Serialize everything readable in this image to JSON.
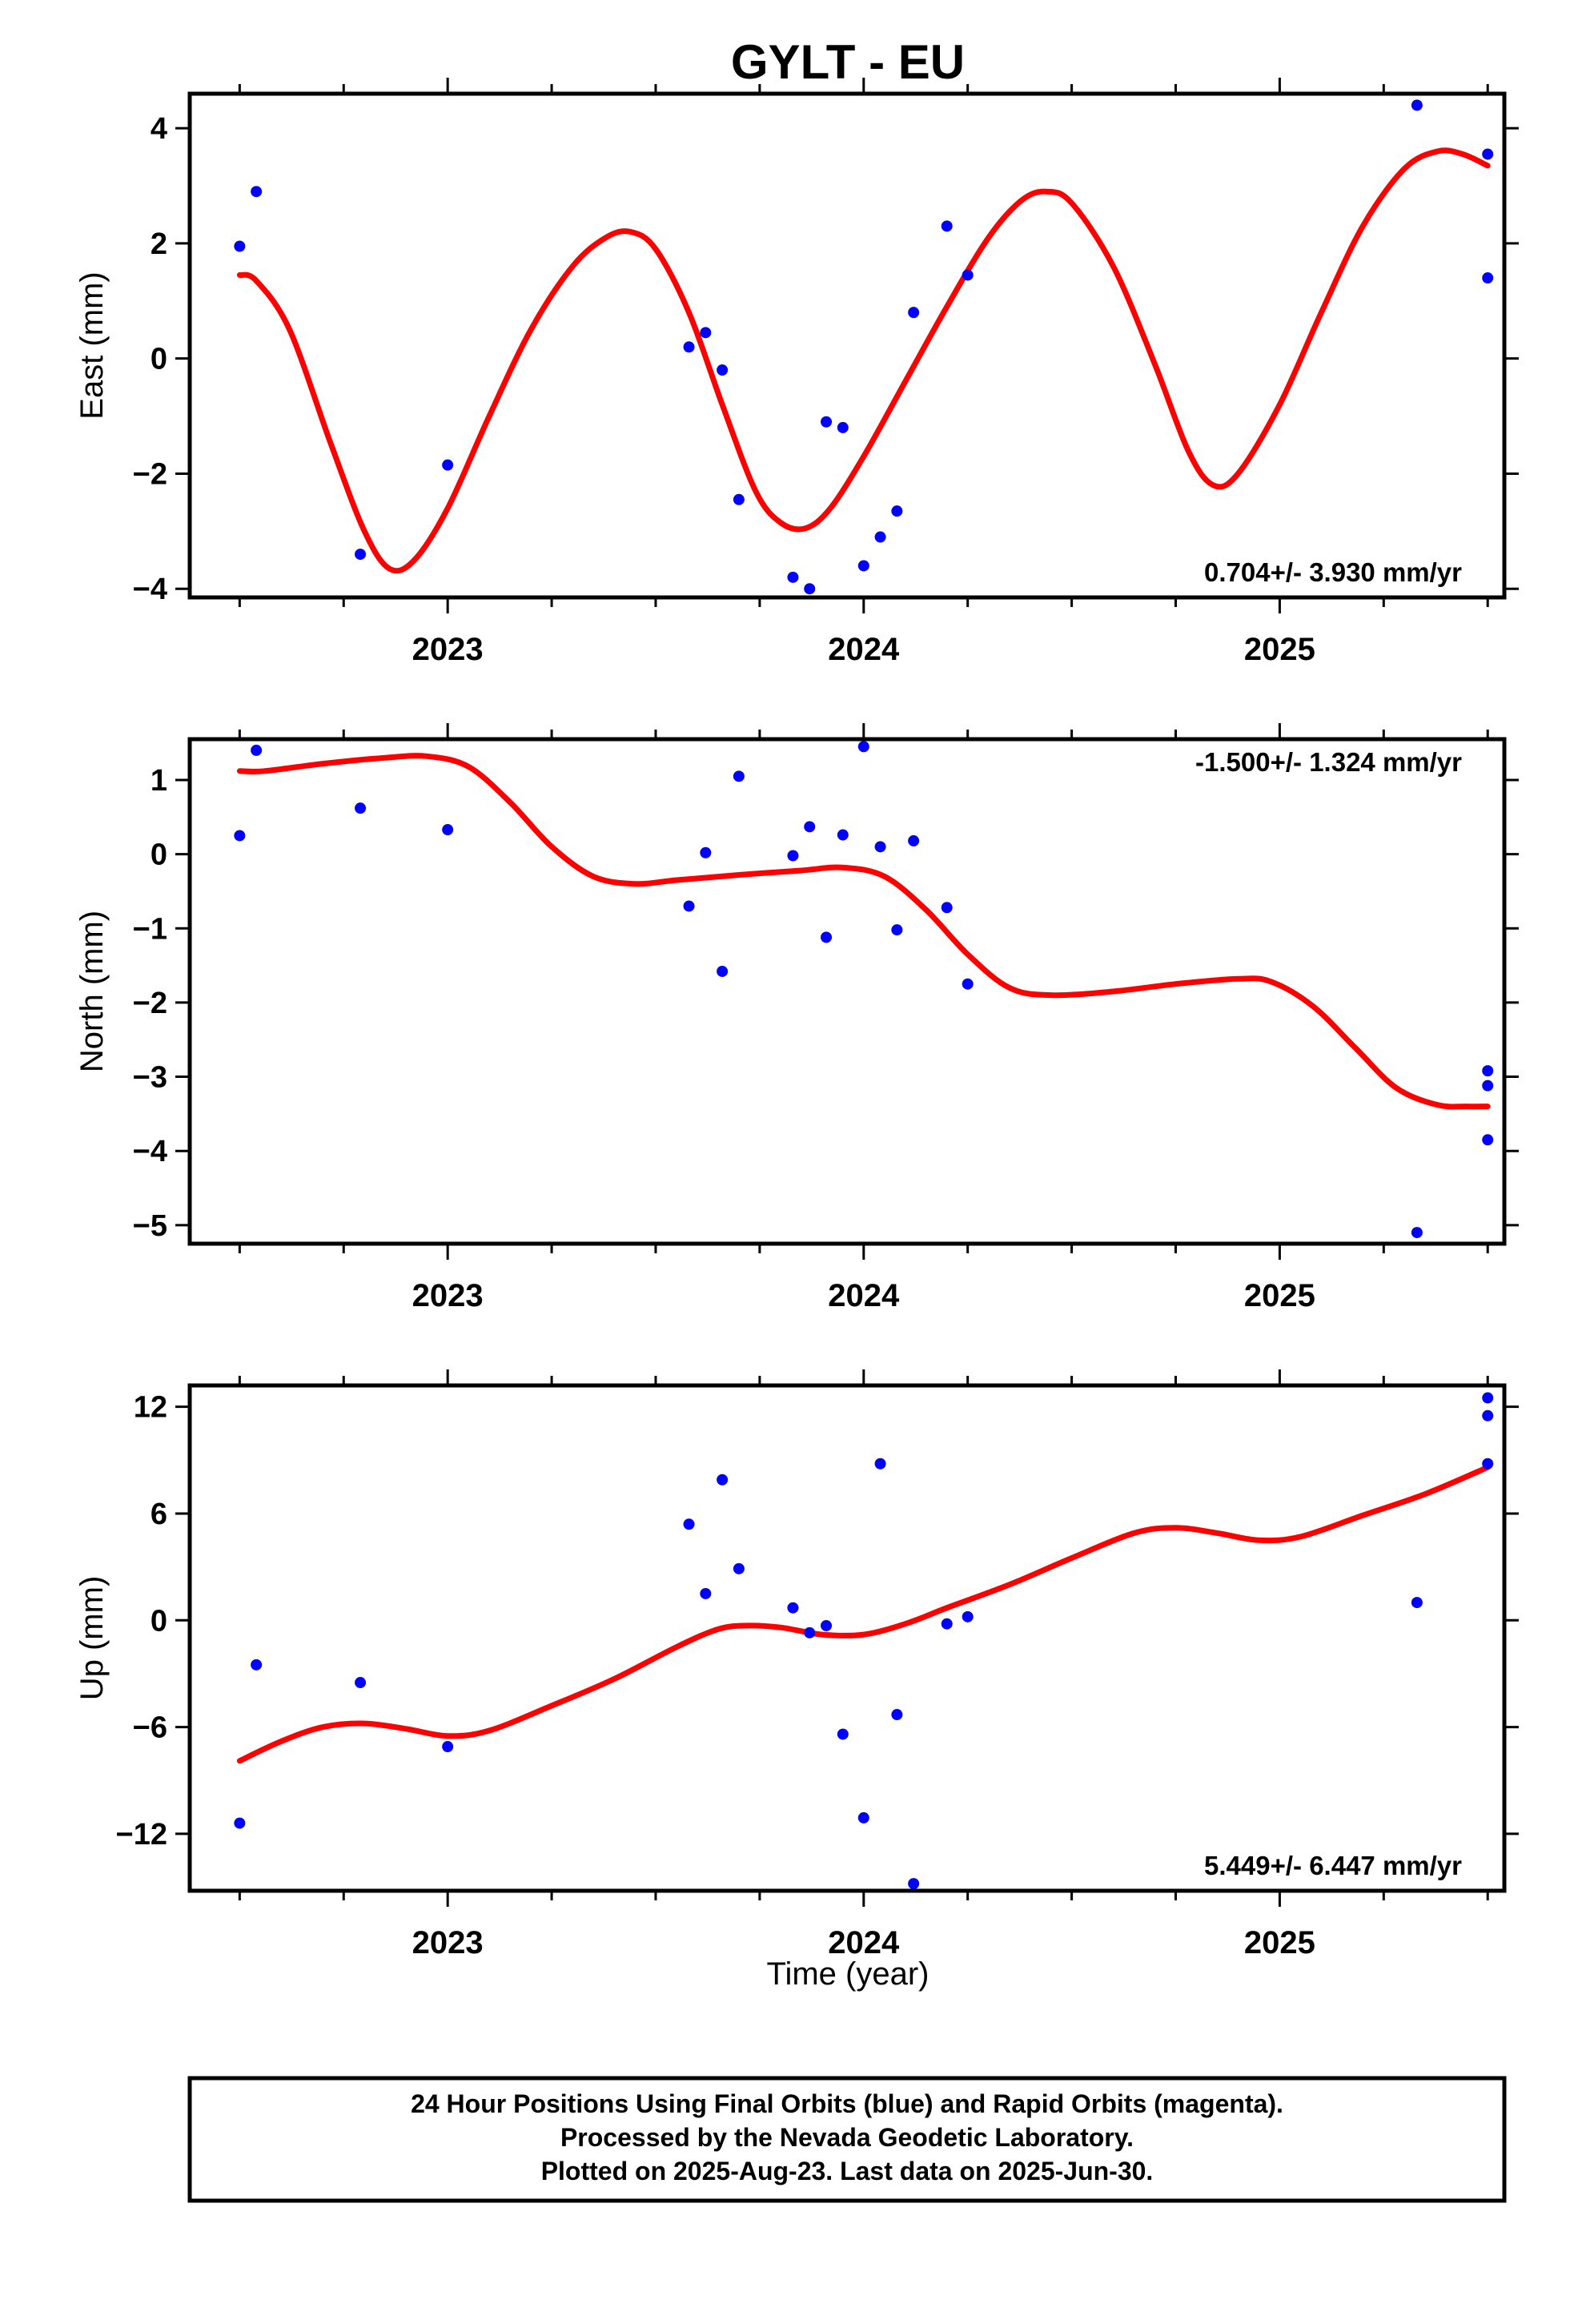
{
  "chart_data": [
    {
      "type": "scatter",
      "id": "east",
      "title": "GYLT - EU",
      "ylabel": "East (mm)",
      "xlabel": "",
      "xlim": [
        2022.38,
        2025.54
      ],
      "ylim": [
        -4.15,
        4.6
      ],
      "yticks": [
        -4,
        -2,
        0,
        2,
        4
      ],
      "xticks": [
        2023,
        2024,
        2025
      ],
      "rate_text": "0.704+/- 3.930 mm/yr",
      "rate_position": "bottom-right",
      "point_color": "#0000ff",
      "fit_color": "#ff0000",
      "points": [
        [
          2022.5,
          1.95
        ],
        [
          2022.54,
          2.9
        ],
        [
          2022.79,
          -3.4
        ],
        [
          2023.0,
          -1.85
        ],
        [
          2023.58,
          0.2
        ],
        [
          2023.62,
          0.45
        ],
        [
          2023.66,
          -0.2
        ],
        [
          2023.7,
          -2.45
        ],
        [
          2023.83,
          -3.8
        ],
        [
          2023.87,
          -4.0
        ],
        [
          2023.91,
          -1.1
        ],
        [
          2023.95,
          -1.2
        ],
        [
          2024.0,
          -3.6
        ],
        [
          2024.04,
          -3.1
        ],
        [
          2024.08,
          -2.65
        ],
        [
          2024.12,
          0.8
        ],
        [
          2024.2,
          2.3
        ],
        [
          2024.25,
          1.45
        ],
        [
          2025.33,
          4.4
        ],
        [
          2025.5,
          3.55
        ],
        [
          2025.5,
          1.4
        ]
      ],
      "fit": [
        [
          2022.5,
          1.45
        ],
        [
          2022.54,
          1.35
        ],
        [
          2022.62,
          0.5
        ],
        [
          2022.72,
          -1.5
        ],
        [
          2022.8,
          -3.0
        ],
        [
          2022.86,
          -3.65
        ],
        [
          2022.92,
          -3.5
        ],
        [
          2023.0,
          -2.6
        ],
        [
          2023.1,
          -1.0
        ],
        [
          2023.2,
          0.5
        ],
        [
          2023.3,
          1.6
        ],
        [
          2023.38,
          2.1
        ],
        [
          2023.44,
          2.2
        ],
        [
          2023.5,
          1.9
        ],
        [
          2023.58,
          0.8
        ],
        [
          2023.66,
          -0.8
        ],
        [
          2023.74,
          -2.3
        ],
        [
          2023.8,
          -2.85
        ],
        [
          2023.86,
          -2.95
        ],
        [
          2023.92,
          -2.6
        ],
        [
          2024.0,
          -1.7
        ],
        [
          2024.1,
          -0.4
        ],
        [
          2024.2,
          0.9
        ],
        [
          2024.3,
          2.1
        ],
        [
          2024.38,
          2.75
        ],
        [
          2024.44,
          2.9
        ],
        [
          2024.5,
          2.7
        ],
        [
          2024.6,
          1.6
        ],
        [
          2024.7,
          -0.1
        ],
        [
          2024.78,
          -1.6
        ],
        [
          2024.84,
          -2.2
        ],
        [
          2024.9,
          -2.0
        ],
        [
          2025.0,
          -0.8
        ],
        [
          2025.1,
          0.8
        ],
        [
          2025.2,
          2.3
        ],
        [
          2025.3,
          3.3
        ],
        [
          2025.38,
          3.6
        ],
        [
          2025.44,
          3.55
        ],
        [
          2025.5,
          3.35
        ]
      ]
    },
    {
      "type": "scatter",
      "id": "north",
      "title": "",
      "ylabel": "North (mm)",
      "xlabel": "",
      "xlim": [
        2022.38,
        2025.54
      ],
      "ylim": [
        -5.25,
        1.55
      ],
      "yticks": [
        -5,
        -4,
        -3,
        -2,
        -1,
        0,
        1
      ],
      "xticks": [
        2023,
        2024,
        2025
      ],
      "rate_text": "-1.500+/- 1.324 mm/yr",
      "rate_position": "top-right",
      "point_color": "#0000ff",
      "fit_color": "#ff0000",
      "points": [
        [
          2022.5,
          0.25
        ],
        [
          2022.54,
          1.4
        ],
        [
          2022.79,
          0.62
        ],
        [
          2023.0,
          0.33
        ],
        [
          2023.58,
          -0.7
        ],
        [
          2023.62,
          0.02
        ],
        [
          2023.66,
          -1.58
        ],
        [
          2023.7,
          1.05
        ],
        [
          2023.83,
          -0.02
        ],
        [
          2023.87,
          0.37
        ],
        [
          2023.91,
          -1.12
        ],
        [
          2023.95,
          0.26
        ],
        [
          2024.0,
          1.45
        ],
        [
          2024.04,
          0.1
        ],
        [
          2024.08,
          -1.02
        ],
        [
          2024.12,
          0.18
        ],
        [
          2024.2,
          -0.72
        ],
        [
          2024.25,
          -1.75
        ],
        [
          2025.33,
          -5.1
        ],
        [
          2025.5,
          -2.92
        ],
        [
          2025.5,
          -3.12
        ],
        [
          2025.5,
          -3.85
        ]
      ],
      "fit": [
        [
          2022.5,
          1.12
        ],
        [
          2022.56,
          1.12
        ],
        [
          2022.7,
          1.22
        ],
        [
          2022.85,
          1.3
        ],
        [
          2022.95,
          1.32
        ],
        [
          2023.05,
          1.18
        ],
        [
          2023.15,
          0.7
        ],
        [
          2023.25,
          0.1
        ],
        [
          2023.35,
          -0.3
        ],
        [
          2023.45,
          -0.4
        ],
        [
          2023.55,
          -0.35
        ],
        [
          2023.7,
          -0.28
        ],
        [
          2023.85,
          -0.22
        ],
        [
          2023.95,
          -0.18
        ],
        [
          2024.05,
          -0.3
        ],
        [
          2024.15,
          -0.75
        ],
        [
          2024.25,
          -1.35
        ],
        [
          2024.35,
          -1.8
        ],
        [
          2024.45,
          -1.9
        ],
        [
          2024.6,
          -1.85
        ],
        [
          2024.75,
          -1.75
        ],
        [
          2024.9,
          -1.68
        ],
        [
          2024.98,
          -1.72
        ],
        [
          2025.08,
          -2.05
        ],
        [
          2025.18,
          -2.6
        ],
        [
          2025.28,
          -3.15
        ],
        [
          2025.38,
          -3.38
        ],
        [
          2025.45,
          -3.4
        ],
        [
          2025.5,
          -3.4
        ]
      ]
    },
    {
      "type": "scatter",
      "id": "up",
      "title": "",
      "ylabel": "Up (mm)",
      "xlabel": "Time (year)",
      "xlim": [
        2022.38,
        2025.54
      ],
      "ylim": [
        -15.2,
        13.2
      ],
      "yticks": [
        -12,
        -6,
        0,
        6,
        12
      ],
      "xticks": [
        2023,
        2024,
        2025
      ],
      "rate_text": "5.449+/- 6.447 mm/yr",
      "rate_position": "bottom-right",
      "point_color": "#0000ff",
      "fit_color": "#ff0000",
      "points": [
        [
          2022.5,
          -11.4
        ],
        [
          2022.54,
          -2.5
        ],
        [
          2022.79,
          -3.5
        ],
        [
          2023.0,
          -7.1
        ],
        [
          2023.58,
          5.4
        ],
        [
          2023.62,
          1.5
        ],
        [
          2023.66,
          7.9
        ],
        [
          2023.7,
          2.9
        ],
        [
          2023.83,
          0.7
        ],
        [
          2023.87,
          -0.7
        ],
        [
          2023.91,
          -0.3
        ],
        [
          2023.95,
          -6.4
        ],
        [
          2024.0,
          -11.1
        ],
        [
          2024.04,
          8.8
        ],
        [
          2024.08,
          -5.3
        ],
        [
          2024.12,
          -14.8
        ],
        [
          2024.2,
          -0.2
        ],
        [
          2024.25,
          0.2
        ],
        [
          2025.33,
          1.0
        ],
        [
          2025.5,
          12.5
        ],
        [
          2025.5,
          11.5
        ],
        [
          2025.5,
          8.8
        ]
      ],
      "fit": [
        [
          2022.5,
          -7.9
        ],
        [
          2022.6,
          -6.8
        ],
        [
          2022.7,
          -6.0
        ],
        [
          2022.8,
          -5.8
        ],
        [
          2022.9,
          -6.1
        ],
        [
          2023.0,
          -6.5
        ],
        [
          2023.1,
          -6.2
        ],
        [
          2023.25,
          -4.8
        ],
        [
          2023.4,
          -3.3
        ],
        [
          2023.55,
          -1.5
        ],
        [
          2023.65,
          -0.5
        ],
        [
          2023.72,
          -0.3
        ],
        [
          2023.8,
          -0.4
        ],
        [
          2023.9,
          -0.8
        ],
        [
          2024.0,
          -0.8
        ],
        [
          2024.1,
          -0.2
        ],
        [
          2024.2,
          0.7
        ],
        [
          2024.35,
          2.0
        ],
        [
          2024.5,
          3.5
        ],
        [
          2024.65,
          4.9
        ],
        [
          2024.75,
          5.2
        ],
        [
          2024.85,
          4.9
        ],
        [
          2024.95,
          4.5
        ],
        [
          2025.05,
          4.7
        ],
        [
          2025.2,
          5.9
        ],
        [
          2025.35,
          7.1
        ],
        [
          2025.5,
          8.6
        ]
      ]
    }
  ],
  "footer": {
    "line1": "24 Hour Positions Using Final Orbits (blue) and Rapid Orbits (magenta).",
    "line2": "Processed by the Nevada Geodetic Laboratory.",
    "line3": "Plotted on 2025-Aug-23. Last data on 2025-Jun-30."
  }
}
